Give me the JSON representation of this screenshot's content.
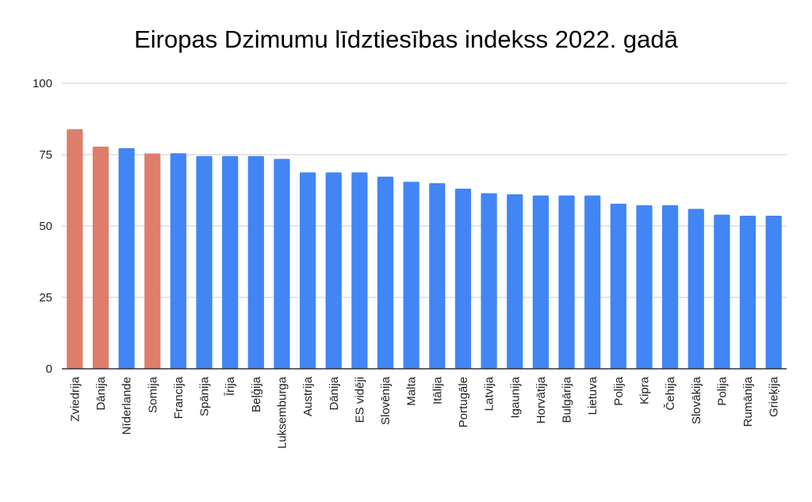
{
  "chart_data": {
    "type": "bar",
    "title": "Eiropas Dzimumu līdztiesības indekss 2022. gadā",
    "xlabel": "",
    "ylabel": "",
    "ylim": [
      0,
      100
    ],
    "yticks": [
      "0",
      "25",
      "50",
      "75",
      "100"
    ],
    "ytick_values": [
      0,
      25,
      50,
      75,
      100
    ],
    "grid": true,
    "categories": [
      "Zviedrija",
      "Dānija",
      "Nīderlande",
      "Somija",
      "Francija",
      "Spānija",
      "Īrija",
      "Beļģija",
      "Luksemburga",
      "Austrija",
      "Dānija",
      "ES vidēji",
      "Slovēnija",
      "Malta",
      "Itālija",
      "Portugāle",
      "Latvija",
      "Igaunija",
      "Horvātija",
      "Bulgārija",
      "Lietuva",
      "Polija",
      "Kipra",
      "Čehija",
      "Slovākija",
      "Polija",
      "Rumānija",
      "Grieķija"
    ],
    "values": [
      83.9,
      77.8,
      77.3,
      75.4,
      75.5,
      74.5,
      74.5,
      74.5,
      73.5,
      68.8,
      68.8,
      68.8,
      67.3,
      65.5,
      65.0,
      63.1,
      61.5,
      61.1,
      60.7,
      60.7,
      60.7,
      57.8,
      57.3,
      57.3,
      56.0,
      54.0,
      53.6,
      53.6
    ],
    "highlighted": [
      true,
      true,
      false,
      true,
      false,
      false,
      false,
      false,
      false,
      false,
      false,
      false,
      false,
      false,
      false,
      false,
      false,
      false,
      false,
      false,
      false,
      false,
      false,
      false,
      false,
      false,
      false,
      false
    ],
    "colors": {
      "default": "#4285f4",
      "highlight": "#dd7e6b",
      "grid": "#cccccc",
      "axis": "#333333"
    }
  }
}
